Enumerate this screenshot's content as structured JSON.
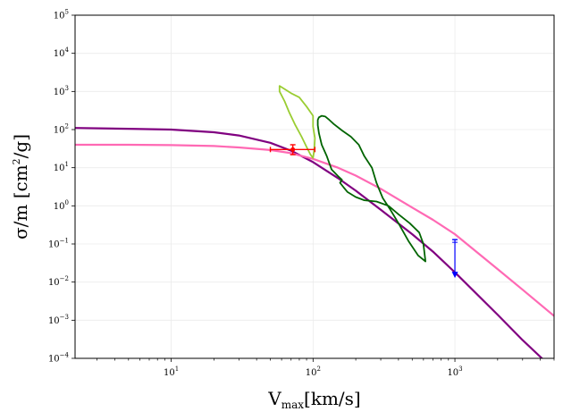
{
  "chart_data": {
    "type": "line",
    "title": "",
    "xlabel": {
      "base": "V",
      "sub": "max",
      "rest": "[km/s]"
    },
    "ylabel": {
      "pre": "σ/m [cm",
      "sup": "2",
      "post": "/g]"
    },
    "x_scale": "log",
    "y_scale": "log",
    "xlim": [
      2.1,
      5000
    ],
    "ylim": [
      0.0001,
      100000
    ],
    "grid": true,
    "legend": "none",
    "x_ticks": [
      {
        "value": 10,
        "base": "10",
        "exp": "1"
      },
      {
        "value": 100,
        "base": "10",
        "exp": "2"
      },
      {
        "value": 1000,
        "base": "10",
        "exp": "3"
      }
    ],
    "y_ticks": [
      {
        "value": 0.0001,
        "base": "10",
        "exp": "−4"
      },
      {
        "value": 0.001,
        "base": "10",
        "exp": "−3"
      },
      {
        "value": 0.01,
        "base": "10",
        "exp": "−2"
      },
      {
        "value": 0.1,
        "base": "10",
        "exp": "−1"
      },
      {
        "value": 1,
        "base": "10",
        "exp": "0"
      },
      {
        "value": 10,
        "base": "10",
        "exp": "1"
      },
      {
        "value": 100,
        "base": "10",
        "exp": "2"
      },
      {
        "value": 1000,
        "base": "10",
        "exp": "3"
      },
      {
        "value": 10000,
        "base": "10",
        "exp": "4"
      },
      {
        "value": 100000,
        "base": "10",
        "exp": "5"
      }
    ],
    "series": [
      {
        "kind": "curve",
        "color": "#800080",
        "x": [
          2.1,
          5,
          10,
          20,
          30,
          50,
          70,
          100,
          150,
          200,
          300,
          500,
          700,
          1000,
          2000,
          3000,
          5000
        ],
        "y": [
          110,
          105,
          100,
          85,
          70,
          45,
          28,
          14,
          5.3,
          2.5,
          0.79,
          0.18,
          0.063,
          0.018,
          0.0014,
          0.0003,
          5e-05
        ]
      },
      {
        "kind": "curve",
        "color": "#ff69b4",
        "x": [
          2.1,
          5,
          10,
          20,
          30,
          50,
          70,
          100,
          150,
          200,
          300,
          500,
          700,
          1000,
          2000,
          3000,
          5000
        ],
        "y": [
          40,
          40,
          39,
          37,
          34,
          29,
          24,
          17,
          10,
          6.2,
          2.8,
          0.9,
          0.43,
          0.18,
          0.022,
          0.0063,
          0.0013
        ]
      },
      {
        "kind": "contour",
        "color": "#9acd32",
        "x": [
          58,
          62,
          70,
          80,
          90,
          100,
          100,
          103,
          102,
          100,
          96,
          90,
          83,
          75,
          68,
          63,
          58,
          58
        ],
        "y": [
          1400,
          1200,
          900,
          700,
          400,
          230,
          120,
          60,
          30,
          18,
          22,
          35,
          65,
          130,
          280,
          550,
          1000,
          1400
        ]
      },
      {
        "kind": "contour",
        "color": "#006400",
        "x": [
          110,
          115,
          122,
          130,
          140,
          160,
          185,
          210,
          230,
          260,
          280,
          310,
          350,
          400,
          470,
          550,
          620,
          600,
          560,
          480,
          400,
          340,
          280,
          230,
          200,
          175,
          165,
          155,
          160,
          150,
          135,
          125,
          115,
          110,
          108,
          108,
          110
        ],
        "y": [
          210,
          230,
          220,
          180,
          140,
          95,
          65,
          40,
          20,
          10,
          4,
          1.6,
          0.8,
          0.35,
          0.12,
          0.05,
          0.035,
          0.1,
          0.2,
          0.35,
          0.6,
          1.0,
          1.3,
          1.4,
          1.7,
          2.3,
          3.0,
          4.0,
          4.8,
          6.0,
          9,
          20,
          40,
          80,
          130,
          180,
          210
        ]
      }
    ],
    "points": [
      {
        "x": 72,
        "y": 30,
        "color": "#ff0000",
        "xerr": [
          50,
          103
        ],
        "yerr": [
          22,
          40
        ],
        "marker": "dot"
      },
      {
        "x": 1000,
        "y": 0.015,
        "color": "#0000ff",
        "yerr_top": 0.13,
        "marker": "down-triangle"
      }
    ]
  }
}
